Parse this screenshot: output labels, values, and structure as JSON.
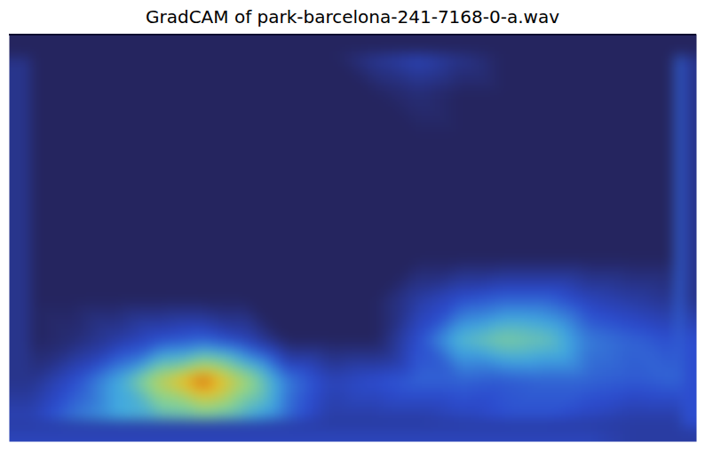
{
  "chart_data": {
    "type": "heatmap",
    "title": "GradCAM of park-barcelona-241-7168-0-a.wav",
    "tick_labels": false,
    "zlim": [
      0,
      1
    ],
    "values": [
      [
        0,
        0,
        0,
        0,
        0,
        0,
        0,
        0,
        0.12,
        0.2,
        0.1,
        0,
        0,
        0,
        0,
        0
      ],
      [
        0,
        0,
        0,
        0,
        0,
        0,
        0,
        0,
        0,
        0.05,
        0,
        0,
        0,
        0,
        0,
        0
      ],
      [
        0,
        0,
        0,
        0,
        0,
        0,
        0,
        0,
        0,
        0,
        0,
        0,
        0,
        0,
        0,
        0
      ],
      [
        0,
        0,
        0,
        0,
        0,
        0,
        0,
        0,
        0,
        0,
        0,
        0,
        0,
        0,
        0,
        0
      ],
      [
        0,
        0,
        0,
        0,
        0,
        0,
        0,
        0,
        0,
        0,
        0,
        0,
        0,
        0,
        0,
        0
      ],
      [
        0,
        0,
        0,
        0,
        0,
        0,
        0,
        0,
        0,
        0,
        0,
        0,
        0,
        0,
        0,
        0
      ],
      [
        0,
        0,
        0,
        0,
        0,
        0,
        0,
        0,
        0,
        0.15,
        0.25,
        0.3,
        0.3,
        0.2,
        0.15,
        0.1
      ],
      [
        0,
        0.05,
        0.15,
        0.25,
        0.3,
        0.2,
        0,
        0,
        0,
        0.25,
        0.5,
        0.6,
        0.55,
        0.35,
        0.3,
        0.25
      ],
      [
        0.1,
        0.25,
        0.45,
        0.75,
        0.95,
        0.7,
        0.35,
        0.2,
        0.25,
        0.3,
        0.3,
        0.28,
        0.3,
        0.3,
        0.28,
        0.3
      ],
      [
        0.2,
        0.35,
        0.45,
        0.5,
        0.55,
        0.45,
        0.3,
        0.15,
        0.15,
        0.15,
        0.2,
        0.25,
        0.25,
        0.2,
        0.15,
        0.15
      ]
    ]
  }
}
